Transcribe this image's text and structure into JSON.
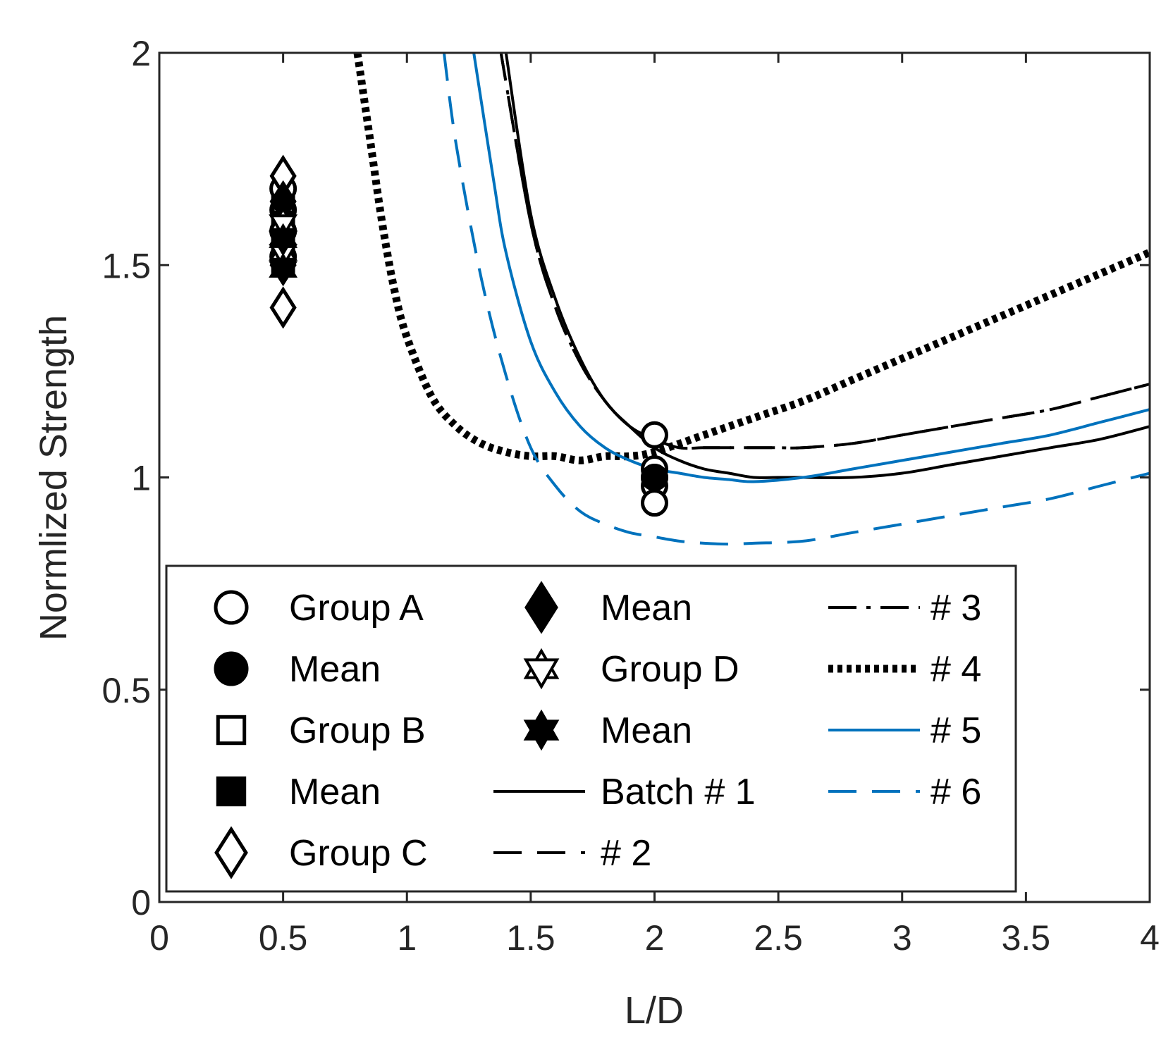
{
  "chart_data": {
    "type": "line",
    "title": "",
    "xlabel": "L/D",
    "ylabel": "Normlized Strength",
    "xlim": [
      0,
      4
    ],
    "ylim": [
      0,
      2
    ],
    "xticks": [
      "0",
      "0.5",
      "1",
      "1.5",
      "2",
      "2.5",
      "3",
      "3.5",
      "4"
    ],
    "yticks": [
      "0",
      "0.5",
      "1",
      "1.5",
      "2"
    ],
    "grid": false,
    "legend_position": "bottom-left, inside axes, 3 columns",
    "colors": {
      "black": "#000000",
      "blue": "#0072BD",
      "axis": "#262626"
    },
    "markers": [
      {
        "name": "Group A",
        "marker": "circle-open",
        "x": [
          0.5,
          0.5,
          0.5,
          0.5,
          2.0,
          2.0,
          2.0,
          2.0,
          2.0
        ],
        "y": [
          1.68,
          1.63,
          1.58,
          1.52,
          1.1,
          1.02,
          1.0,
          0.98,
          0.94
        ]
      },
      {
        "name": "Mean",
        "marker": "circle-filled",
        "x": [
          0.5,
          2.0
        ],
        "y": [
          1.58,
          1.0
        ]
      },
      {
        "name": "Group B",
        "marker": "square-open",
        "x": [
          0.5,
          0.5,
          0.5
        ],
        "y": [
          1.64,
          1.57,
          1.51
        ]
      },
      {
        "name": "Mean",
        "marker": "square-filled",
        "x": [
          0.5,
          0.5
        ],
        "y": [
          1.6,
          1.54
        ]
      },
      {
        "name": "Group C",
        "marker": "diamond-open",
        "x": [
          0.5,
          0.5,
          0.5
        ],
        "y": [
          1.71,
          1.55,
          1.4
        ]
      },
      {
        "name": "Mean",
        "marker": "diamond-filled",
        "x": [
          0.5,
          0.5
        ],
        "y": [
          1.65,
          1.5
        ]
      },
      {
        "name": "Group D",
        "marker": "hexagram-open",
        "x": [
          0.5,
          0.5
        ],
        "y": [
          1.6,
          1.53
        ]
      },
      {
        "name": "Mean",
        "marker": "hexagram-filled",
        "x": [
          0.5,
          0.5
        ],
        "y": [
          1.56,
          1.49
        ]
      }
    ],
    "series": [
      {
        "name": "Batch # 1",
        "color": "#000000",
        "style": "solid",
        "x": [
          1.4,
          1.5,
          1.6,
          1.7,
          1.8,
          1.9,
          2.0,
          2.1,
          2.2,
          2.3,
          2.4,
          2.5,
          2.6,
          2.8,
          3.0,
          3.2,
          3.4,
          3.6,
          3.8,
          4.0
        ],
        "y": [
          2.0,
          1.62,
          1.42,
          1.28,
          1.18,
          1.12,
          1.07,
          1.04,
          1.02,
          1.01,
          1.0,
          1.0,
          1.0,
          1.0,
          1.01,
          1.03,
          1.05,
          1.07,
          1.09,
          1.12
        ]
      },
      {
        "name": "# 2",
        "color": "#000000",
        "style": "dashed",
        "x": [
          1.38,
          1.5,
          1.6,
          1.7,
          1.8,
          1.9,
          2.0,
          2.1,
          2.2,
          2.3,
          2.4,
          2.5,
          2.6,
          2.8,
          3.0,
          3.2,
          3.4,
          3.6,
          3.8,
          4.0
        ],
        "y": [
          2.0,
          1.6,
          1.4,
          1.27,
          1.18,
          1.12,
          1.09,
          1.07,
          1.07,
          1.07,
          1.07,
          1.07,
          1.07,
          1.08,
          1.1,
          1.12,
          1.14,
          1.16,
          1.19,
          1.22
        ]
      },
      {
        "name": "# 3",
        "color": "#000000",
        "style": "dashdot",
        "x": [
          1.38,
          1.5,
          1.6,
          1.7,
          1.8,
          1.9,
          2.0,
          2.1,
          2.2,
          2.3,
          2.4,
          2.5,
          2.6,
          2.8,
          3.0,
          3.2,
          3.4,
          3.6,
          3.8,
          4.0
        ],
        "y": [
          2.0,
          1.6,
          1.4,
          1.27,
          1.18,
          1.12,
          1.09,
          1.07,
          1.07,
          1.07,
          1.07,
          1.07,
          1.07,
          1.08,
          1.1,
          1.12,
          1.14,
          1.16,
          1.19,
          1.22
        ]
      },
      {
        "name": "# 4",
        "color": "#000000",
        "style": "dotted-thick",
        "x": [
          0.8,
          0.85,
          0.9,
          0.95,
          1.0,
          1.1,
          1.2,
          1.3,
          1.4,
          1.5,
          1.6,
          1.7,
          1.8,
          1.9,
          2.0,
          2.2,
          2.4,
          2.6,
          2.8,
          3.0,
          3.2,
          3.4,
          3.6,
          3.8,
          4.0
        ],
        "y": [
          2.0,
          1.8,
          1.6,
          1.44,
          1.33,
          1.19,
          1.12,
          1.08,
          1.06,
          1.05,
          1.05,
          1.04,
          1.05,
          1.05,
          1.06,
          1.1,
          1.14,
          1.18,
          1.23,
          1.28,
          1.33,
          1.38,
          1.43,
          1.48,
          1.53
        ]
      },
      {
        "name": "# 5",
        "color": "#0072BD",
        "style": "solid",
        "x": [
          1.27,
          1.35,
          1.4,
          1.5,
          1.6,
          1.7,
          1.8,
          1.9,
          2.0,
          2.1,
          2.2,
          2.3,
          2.4,
          2.6,
          2.8,
          3.0,
          3.2,
          3.4,
          3.6,
          3.8,
          4.0
        ],
        "y": [
          2.0,
          1.7,
          1.53,
          1.32,
          1.2,
          1.12,
          1.07,
          1.04,
          1.02,
          1.01,
          1.0,
          0.995,
          0.99,
          1.0,
          1.02,
          1.04,
          1.06,
          1.08,
          1.1,
          1.13,
          1.16
        ]
      },
      {
        "name": "# 6",
        "color": "#0072BD",
        "style": "dashed",
        "x": [
          1.15,
          1.2,
          1.3,
          1.4,
          1.5,
          1.6,
          1.7,
          1.8,
          1.9,
          2.0,
          2.1,
          2.2,
          2.3,
          2.4,
          2.6,
          2.8,
          3.0,
          3.2,
          3.4,
          3.6,
          3.8,
          4.0
        ],
        "y": [
          2.0,
          1.78,
          1.47,
          1.24,
          1.07,
          0.98,
          0.92,
          0.89,
          0.87,
          0.86,
          0.85,
          0.845,
          0.843,
          0.845,
          0.85,
          0.87,
          0.89,
          0.91,
          0.93,
          0.95,
          0.98,
          1.01
        ]
      }
    ],
    "legend": [
      {
        "label": "Group A",
        "kind": "marker",
        "marker": "circle-open"
      },
      {
        "label": "Mean",
        "kind": "marker",
        "marker": "circle-filled"
      },
      {
        "label": "Group B",
        "kind": "marker",
        "marker": "square-open"
      },
      {
        "label": "Mean",
        "kind": "marker",
        "marker": "square-filled"
      },
      {
        "label": "Group C",
        "kind": "marker",
        "marker": "diamond-open"
      },
      {
        "label": "Mean",
        "kind": "marker",
        "marker": "diamond-filled"
      },
      {
        "label": "Group D",
        "kind": "marker",
        "marker": "hexagram-open"
      },
      {
        "label": "Mean",
        "kind": "marker",
        "marker": "hexagram-filled"
      },
      {
        "label": "Batch # 1",
        "kind": "line",
        "color": "#000000",
        "style": "solid"
      },
      {
        "label": "# 2",
        "kind": "line",
        "color": "#000000",
        "style": "dashed"
      },
      {
        "label": "# 3",
        "kind": "line",
        "color": "#000000",
        "style": "dashdot"
      },
      {
        "label": "# 4",
        "kind": "line",
        "color": "#000000",
        "style": "dotted-thick"
      },
      {
        "label": "# 5",
        "kind": "line",
        "color": "#0072BD",
        "style": "solid"
      },
      {
        "label": "# 6",
        "kind": "line",
        "color": "#0072BD",
        "style": "dashed"
      }
    ]
  }
}
